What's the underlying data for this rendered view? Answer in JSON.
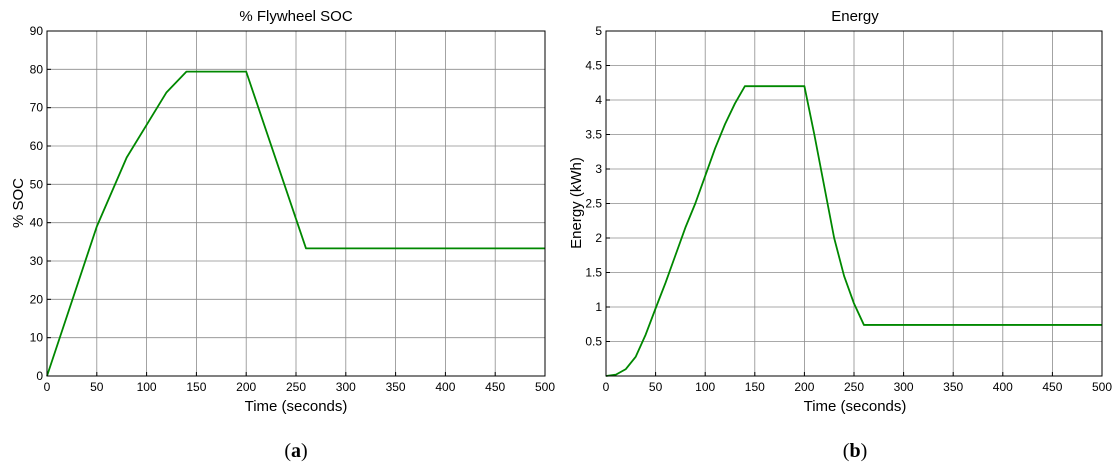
{
  "chart_data": [
    {
      "type": "line",
      "title": "% Flywheel SOC",
      "xlabel": "Time (seconds)",
      "ylabel": "% SOC",
      "xlim": [
        0,
        500
      ],
      "ylim": [
        0,
        90
      ],
      "xticks": [
        "0",
        "50",
        "100",
        "150",
        "200",
        "250",
        "300",
        "350",
        "400",
        "450",
        "500"
      ],
      "yticks": [
        "0",
        "10",
        "20",
        "30",
        "40",
        "50",
        "60",
        "70",
        "80",
        "90"
      ],
      "grid": true,
      "caption_bold": "a",
      "color": "#008800",
      "series": [
        {
          "x": [
            0,
            50,
            80,
            120,
            140,
            200,
            260,
            500
          ],
          "y": [
            0,
            39,
            57,
            74,
            79.4,
            79.4,
            33.3,
            33.3
          ]
        }
      ]
    },
    {
      "type": "line",
      "title": "Energy",
      "xlabel": "Time (seconds)",
      "ylabel": "Energy (kWh)",
      "xlim": [
        0,
        500
      ],
      "ylim": [
        0,
        5
      ],
      "xticks": [
        "0",
        "50",
        "100",
        "150",
        "200",
        "250",
        "300",
        "350",
        "400",
        "450",
        "500"
      ],
      "yticks": [
        "0.5",
        "1",
        "1.5",
        "2",
        "2.5",
        "3",
        "3.5",
        "4",
        "4.5",
        "5"
      ],
      "grid": true,
      "caption_bold": "b",
      "color": "#008800",
      "series": [
        {
          "x": [
            0,
            10,
            20,
            30,
            40,
            50,
            60,
            70,
            80,
            90,
            100,
            110,
            120,
            130,
            140,
            200,
            210,
            220,
            230,
            240,
            250,
            260,
            500
          ],
          "y": [
            0,
            0.02,
            0.1,
            0.28,
            0.6,
            0.98,
            1.35,
            1.75,
            2.15,
            2.5,
            2.9,
            3.3,
            3.65,
            3.95,
            4.2,
            4.2,
            3.5,
            2.75,
            2.0,
            1.45,
            1.05,
            0.74,
            0.74
          ]
        }
      ]
    }
  ]
}
